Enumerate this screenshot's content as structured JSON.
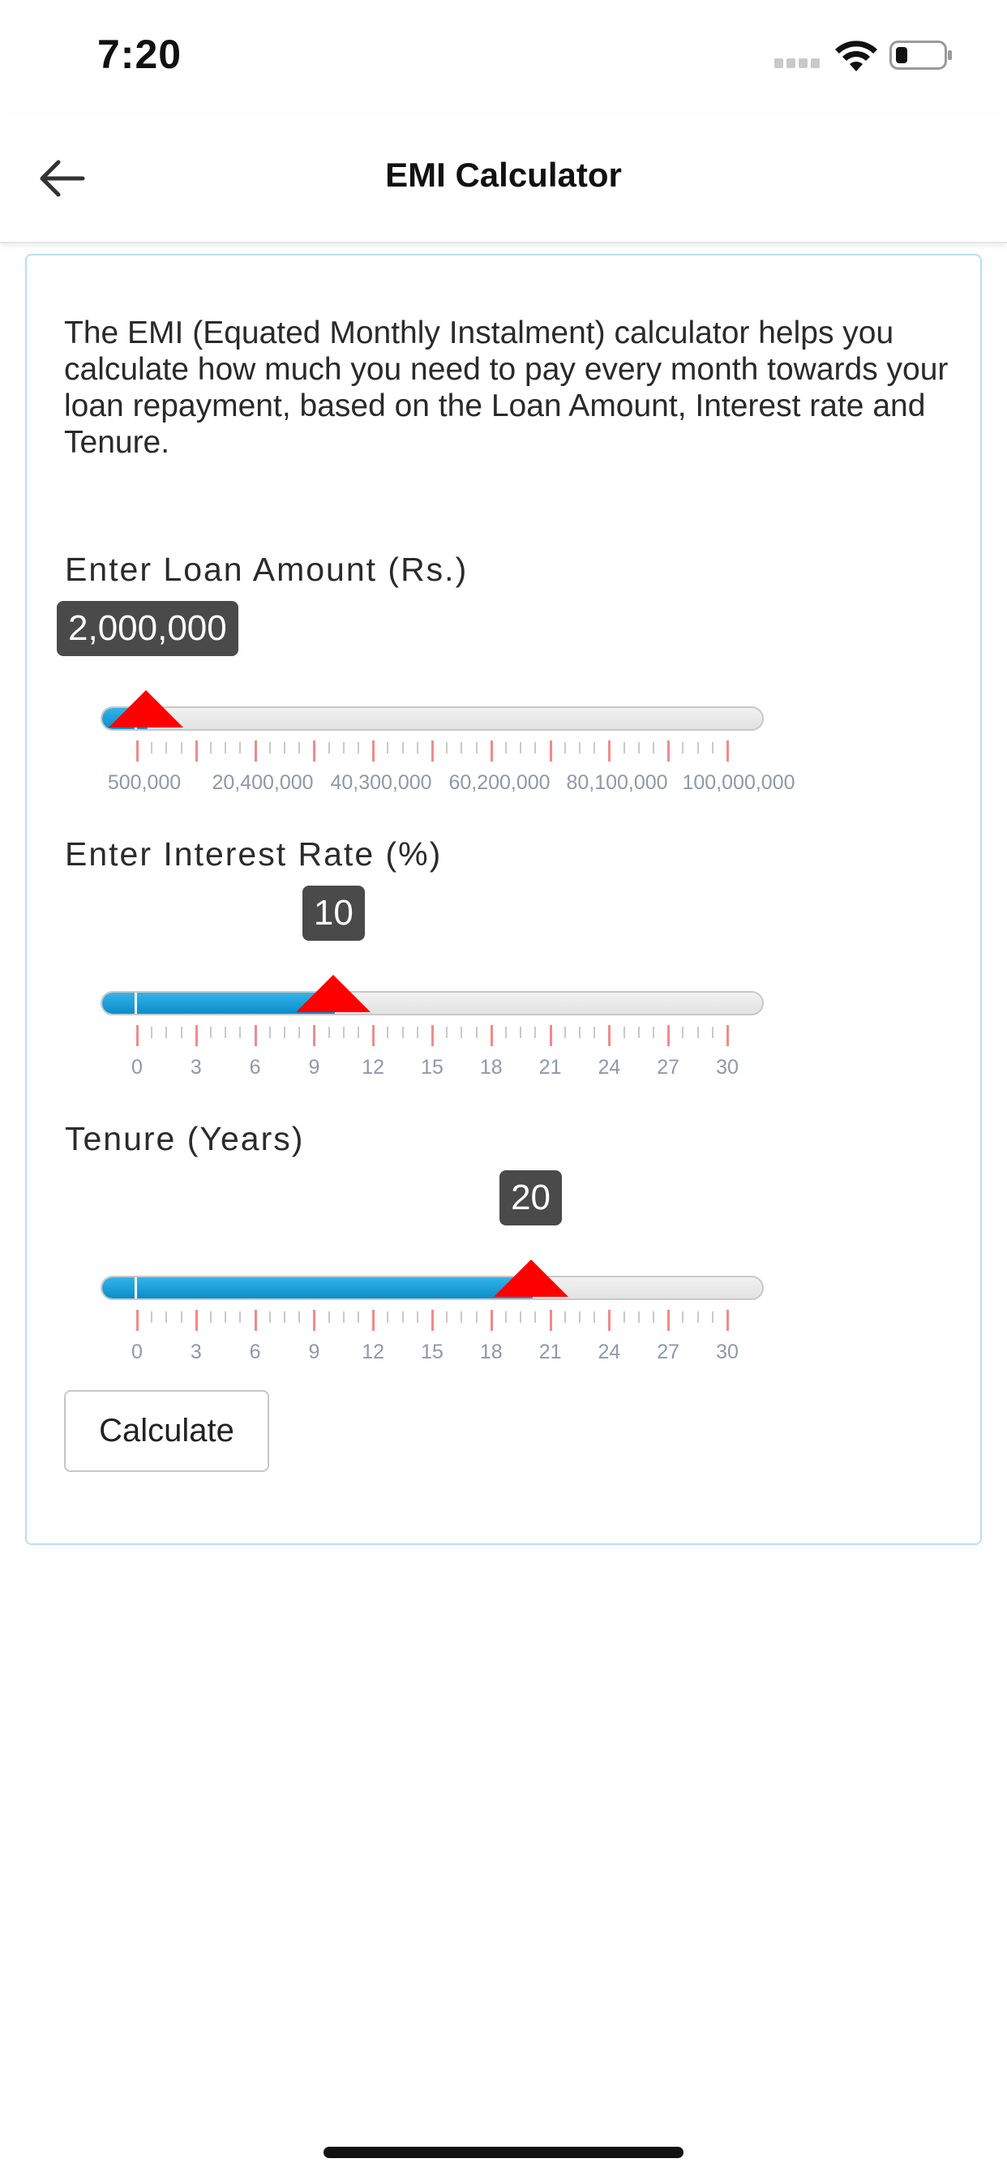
{
  "status_bar": {
    "time": "7:20"
  },
  "header": {
    "title": "EMI Calculator"
  },
  "intro_text": "The EMI (Equated Monthly Instalment) calculator helps you calculate how much you need to pay every month towards your loan repayment, based on the Loan Amount, Interest rate and Tenure.",
  "loan": {
    "label": "Enter Loan Amount (Rs.)",
    "value_display": "2,000,000",
    "value_fraction": 0.015,
    "tick_labels": [
      "500,000",
      "20,400,000",
      "40,300,000",
      "60,200,000",
      "80,100,000",
      "100,000,000"
    ]
  },
  "interest": {
    "label": "Enter Interest Rate (%)",
    "value_display": "10",
    "value_fraction": 0.333,
    "tick_labels": [
      "0",
      "3",
      "6",
      "9",
      "12",
      "15",
      "18",
      "21",
      "24",
      "27",
      "30"
    ]
  },
  "tenure": {
    "label": "Tenure (Years)",
    "value_display": "20",
    "value_fraction": 0.667,
    "tick_labels": [
      "0",
      "3",
      "6",
      "9",
      "12",
      "15",
      "18",
      "21",
      "24",
      "27",
      "30"
    ]
  },
  "calculate_label": "Calculate",
  "colors": {
    "accent": "#0a8dca",
    "handle": "#ff0000",
    "badge": "#4a4a4a",
    "card_border": "#b9dff0"
  },
  "icons": {
    "back": "arrow-left-icon",
    "wifi": "wifi-icon",
    "battery": "battery-icon",
    "signal": "signal-icon"
  }
}
